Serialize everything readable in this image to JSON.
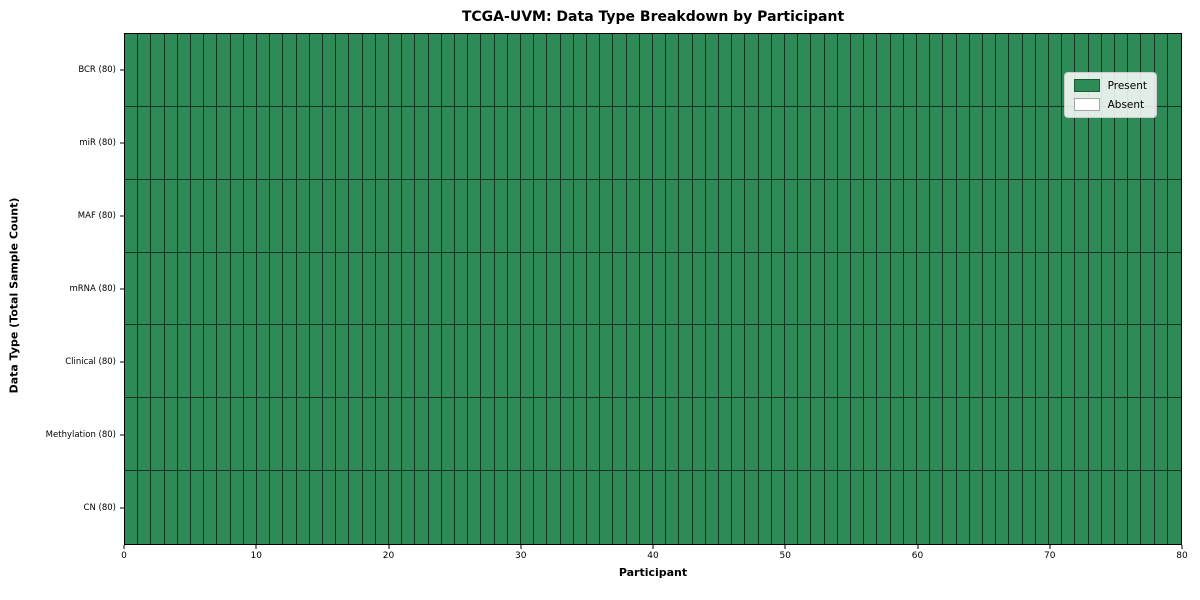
{
  "chart_data": {
    "type": "heatmap",
    "title": "TCGA-UVM: Data Type Breakdown by Participant",
    "xlabel": "Participant",
    "ylabel": "Data Type (Total Sample Count)",
    "xlim": [
      0,
      80
    ],
    "x_ticks": [
      0,
      10,
      20,
      30,
      40,
      50,
      60,
      70,
      80
    ],
    "participants_total": 80,
    "rows": [
      {
        "label": "BCR (80)",
        "present_count": 80,
        "absent_count": 0
      },
      {
        "label": "miR (80)",
        "present_count": 80,
        "absent_count": 0
      },
      {
        "label": "MAF (80)",
        "present_count": 80,
        "absent_count": 0
      },
      {
        "label": "mRNA (80)",
        "present_count": 80,
        "absent_count": 0
      },
      {
        "label": "Clinical (80)",
        "present_count": 80,
        "absent_count": 0
      },
      {
        "label": "Methylation (80)",
        "present_count": 80,
        "absent_count": 0
      },
      {
        "label": "CN (80)",
        "present_count": 80,
        "absent_count": 0
      }
    ],
    "legend": {
      "position": "upper right",
      "entries": [
        {
          "label": "Present",
          "color": "#2e8b57"
        },
        {
          "label": "Absent",
          "color": "#ffffff"
        }
      ]
    },
    "colors": {
      "present": "#2e8b57",
      "absent": "#ffffff",
      "cell_edge": "rgba(0,0,0,0.62)",
      "spine": "#000000"
    },
    "grid": false
  }
}
